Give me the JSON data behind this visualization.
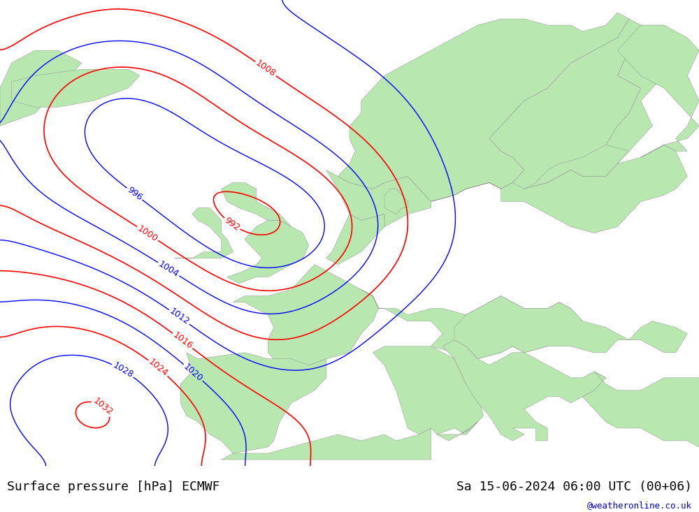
{
  "title_left": "Surface pressure [hPa] ECMWF",
  "title_right": "Sa 15-06-2024 06:00 UTC (00+06)",
  "watermark": "@weatheronline.co.uk",
  "bg_color": "#e8e8e8",
  "land_color": "#b8e8b0",
  "border_color": "#888888",
  "contour_black_color": "#000000",
  "contour_blue_color": "#0000ff",
  "contour_red_color": "#ff0000",
  "label_fontsize": 9,
  "title_fontsize": 13,
  "watermark_fontsize": 9,
  "watermark_color": "#0000cc",
  "figsize": [
    10.0,
    7.33
  ],
  "dpi": 100
}
